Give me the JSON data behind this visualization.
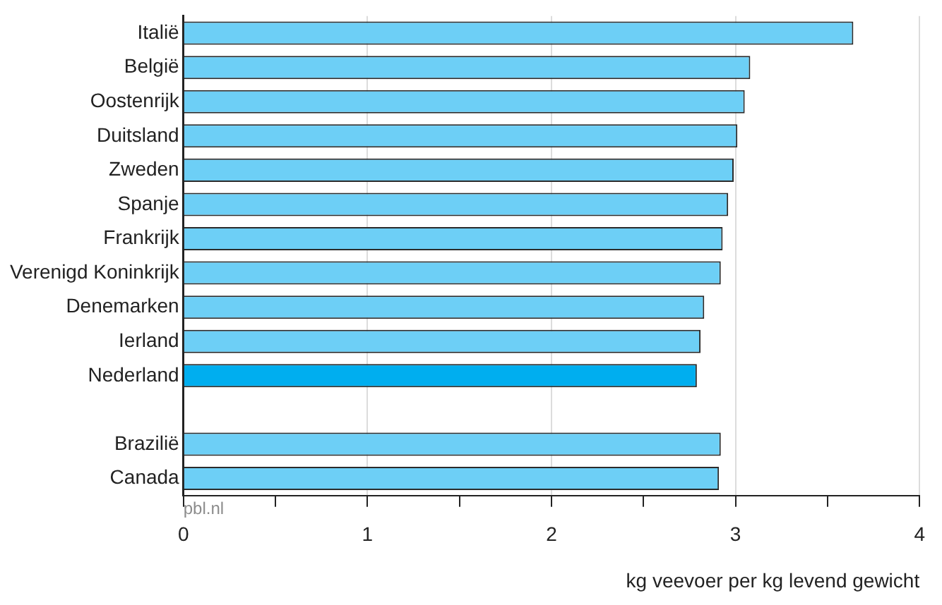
{
  "chart_data": {
    "type": "bar",
    "orientation": "horizontal",
    "xlabel": "kg veevoer per kg levend gewicht",
    "categories": [
      "Italië",
      "België",
      "Oostenrijk",
      "Duitsland",
      "Zweden",
      "Spanje",
      "Frankrijk",
      "Verenigd Koninkrijk",
      "Denemarken",
      "Ierland",
      "Nederland",
      null,
      "Brazilië",
      "Canada"
    ],
    "values": [
      3.64,
      3.08,
      3.05,
      3.01,
      2.99,
      2.96,
      2.93,
      2.92,
      2.83,
      2.81,
      2.79,
      null,
      2.92,
      2.91
    ],
    "colors": [
      "#6dcff6",
      "#6dcff6",
      "#6dcff6",
      "#6dcff6",
      "#6dcff6",
      "#6dcff6",
      "#6dcff6",
      "#6dcff6",
      "#6dcff6",
      "#6dcff6",
      "#00aeef",
      "#6dcff6",
      "#6dcff6",
      "#6dcff6"
    ],
    "xlim": [
      0,
      4
    ],
    "xticks": [
      0,
      {
        "value": 0.5,
        "label": null
      },
      1,
      {
        "value": 1.5,
        "label": null
      },
      2,
      {
        "value": 2.5,
        "label": null
      },
      3,
      {
        "value": 3.5,
        "label": null
      },
      4
    ],
    "grid": "x",
    "legend": false,
    "annotations": [
      "pbl.nl"
    ]
  }
}
